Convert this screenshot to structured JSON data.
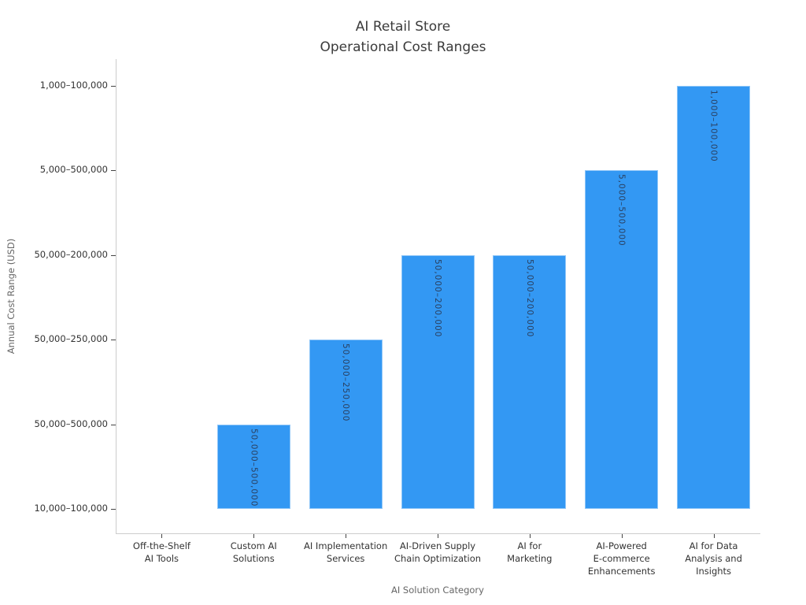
{
  "title": {
    "line1": "AI Retail Store",
    "line2": "Operational Cost Ranges"
  },
  "chart_data": {
    "type": "bar",
    "title": "AI Retail Store\nOperational Cost Ranges",
    "xlabel": "AI Solution Category",
    "ylabel": "Annual Cost Range (USD)",
    "grid": false,
    "legend": false,
    "bar_color": "#3398f3",
    "bar_label_color": "#2a3f5f",
    "axis_line_color": "#cccccc",
    "y_axis_type": "ordinal-range",
    "y_tick_labels": [
      "10,000–100,000",
      "50,000–500,000",
      "50,000–250,000",
      "50,000–200,000",
      "5,000–500,000",
      "1,000–100,000"
    ],
    "categories": [
      "Off-the-Shelf AI Tools",
      "Custom AI Solutions",
      "AI Implementation Services",
      "AI-Driven Supply Chain Optimization",
      "AI for Marketing",
      "AI-Powered E-commerce Enhancements",
      "AI for Data Analysis and Insights"
    ],
    "category_tick_lines": [
      [
        "Off-the-Shelf",
        "AI Tools"
      ],
      [
        "Custom AI",
        "Solutions"
      ],
      [
        "AI Implementation",
        "Services"
      ],
      [
        "AI-Driven Supply",
        "Chain Optimization"
      ],
      [
        "AI for",
        "Marketing"
      ],
      [
        "AI-Powered",
        "E-commerce",
        "Enhancements"
      ],
      [
        "AI for Data",
        "Analysis and",
        "Insights"
      ]
    ],
    "values": [
      0,
      1,
      2,
      3,
      3,
      4,
      5
    ],
    "bar_range_labels": [
      "",
      "50,000–500,000",
      "50,000–250,000",
      "50,000–200,000",
      "50,000–200,000",
      "5,000–500,000",
      "1,000–100,000"
    ]
  }
}
